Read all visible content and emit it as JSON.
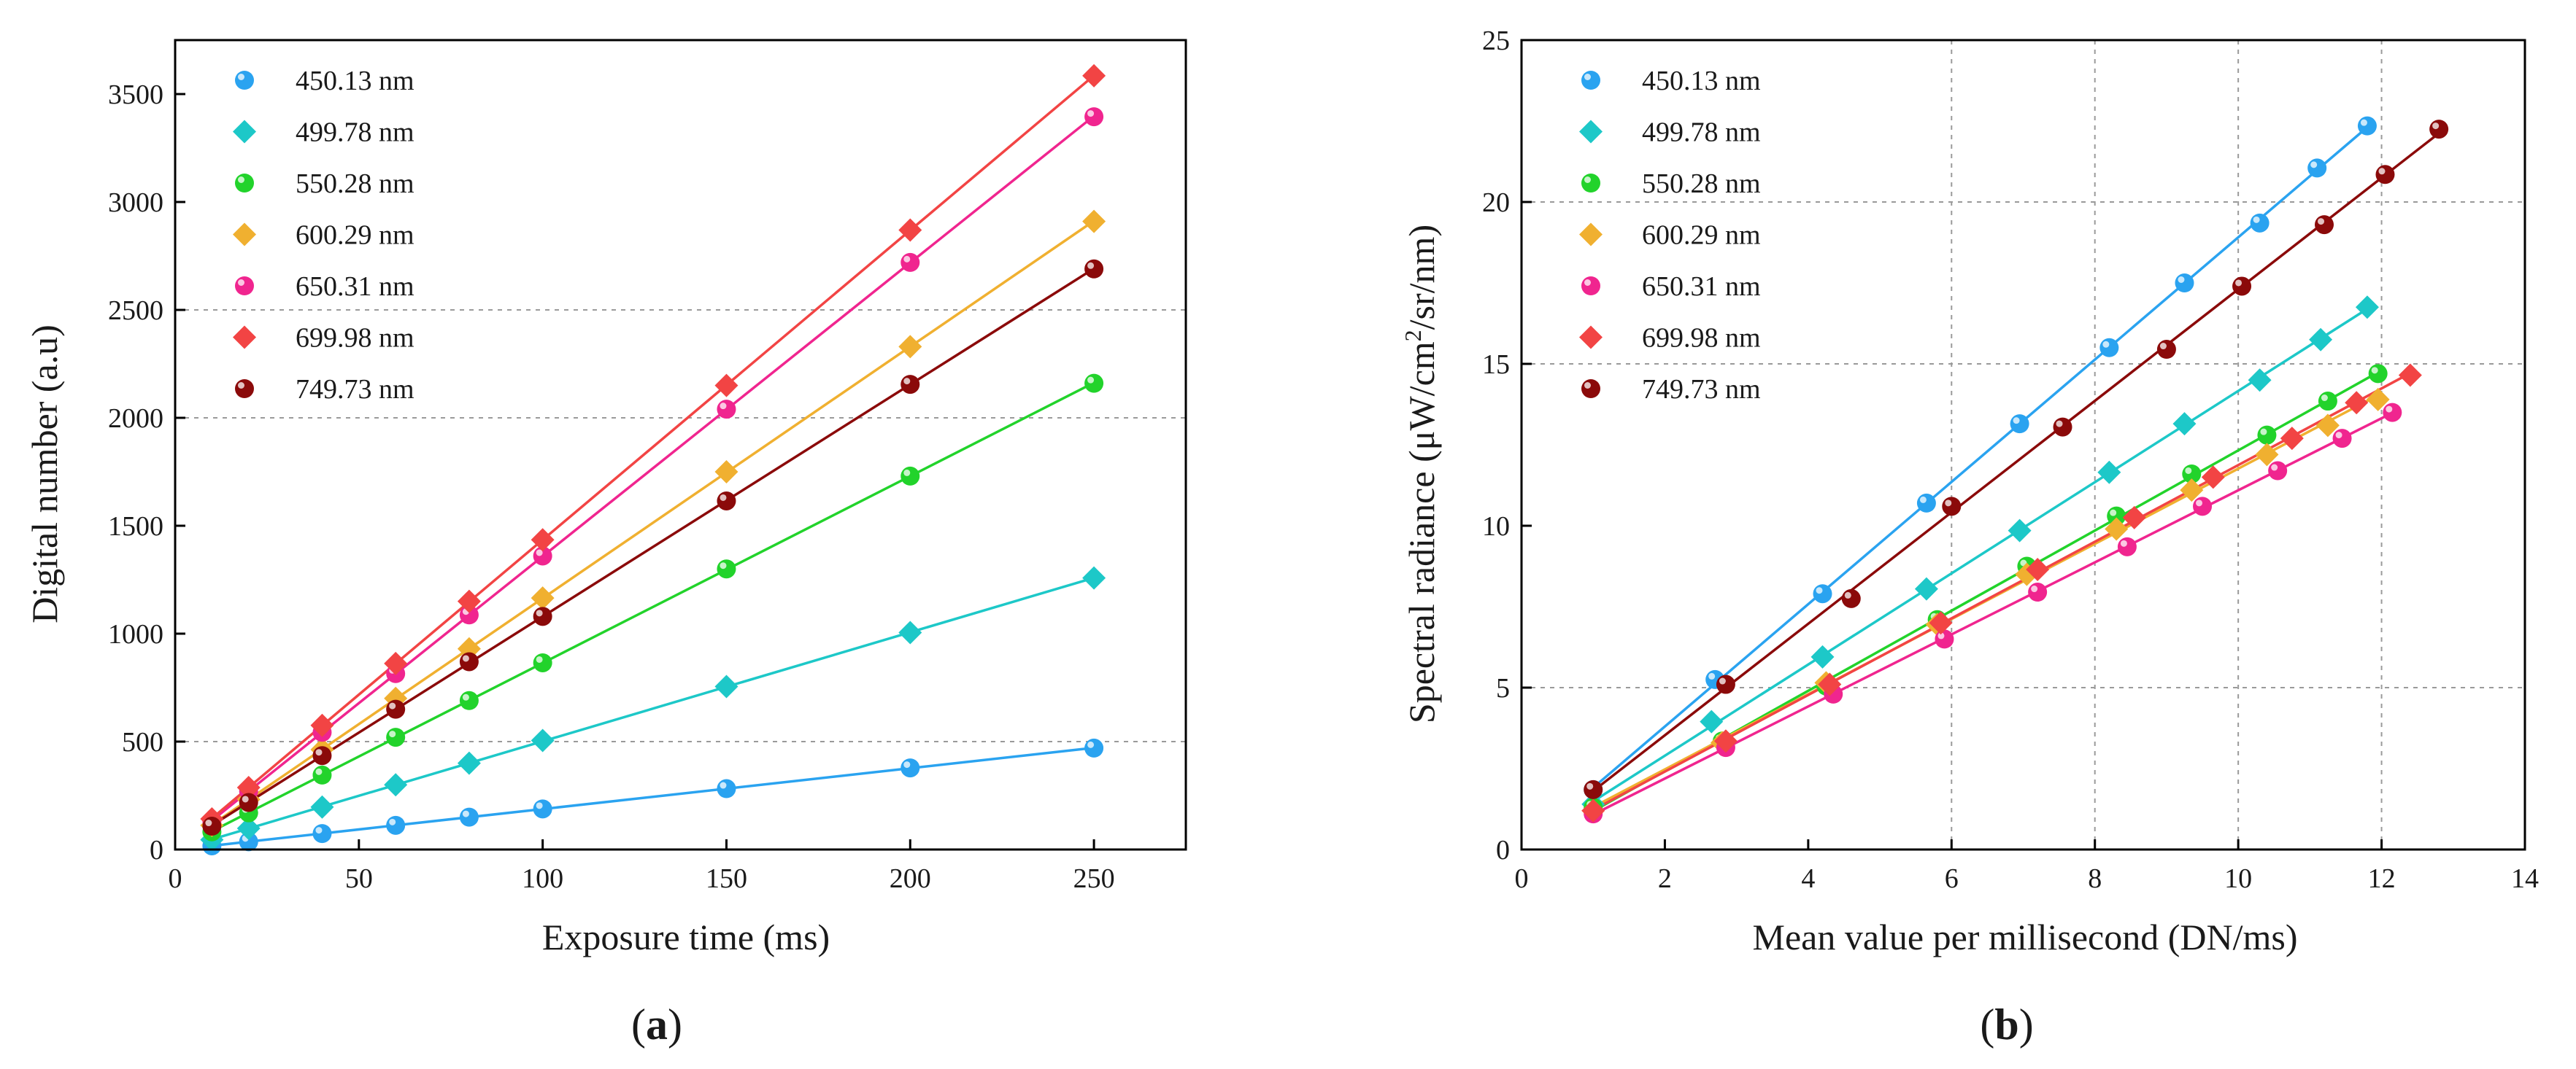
{
  "chart_data": [
    {
      "type": "scatter",
      "panel": "a",
      "caption": "a",
      "xlabel": "Exposure time (ms)",
      "ylabel": "Digital number (a.u)",
      "xlim": [
        0,
        275
      ],
      "ylim": [
        0,
        3750
      ],
      "xticks": [
        0,
        50,
        100,
        150,
        200,
        250
      ],
      "yticks": [
        0,
        500,
        1000,
        1500,
        2000,
        2500,
        3000,
        3500
      ],
      "grid_x": [],
      "grid_y": [
        500,
        2000,
        2500
      ],
      "legend_position": "top-left",
      "series": [
        {
          "name": "450.13 nm",
          "color": "#2aa3f0",
          "marker": "circle",
          "x": [
            10,
            20,
            40,
            60,
            80,
            100,
            150,
            200,
            250
          ],
          "y": [
            17,
            36,
            74,
            112,
            150,
            188,
            282,
            378,
            470
          ]
        },
        {
          "name": "499.78 nm",
          "color": "#1dc8c8",
          "marker": "diamond",
          "x": [
            10,
            20,
            40,
            60,
            80,
            100,
            150,
            200,
            250
          ],
          "y": [
            45,
            98,
            197,
            300,
            400,
            505,
            755,
            1005,
            1258
          ]
        },
        {
          "name": "550.28 nm",
          "color": "#22d32b",
          "marker": "circle",
          "x": [
            10,
            20,
            40,
            60,
            80,
            100,
            150,
            200,
            250
          ],
          "y": [
            82,
            170,
            345,
            520,
            690,
            865,
            1300,
            1730,
            2160
          ]
        },
        {
          "name": "600.29 nm",
          "color": "#f0b030",
          "marker": "diamond",
          "x": [
            10,
            20,
            40,
            60,
            80,
            100,
            150,
            200,
            250
          ],
          "y": [
            112,
            232,
            463,
            700,
            930,
            1165,
            1750,
            2330,
            2910
          ]
        },
        {
          "name": "650.31 nm",
          "color": "#f0258f",
          "marker": "circle",
          "x": [
            10,
            20,
            40,
            60,
            80,
            100,
            150,
            200,
            250
          ],
          "y": [
            130,
            270,
            543,
            815,
            1087,
            1360,
            2040,
            2720,
            3395
          ]
        },
        {
          "name": "699.98 nm",
          "color": "#f24444",
          "marker": "diamond",
          "x": [
            10,
            20,
            40,
            60,
            80,
            100,
            150,
            200,
            250
          ],
          "y": [
            142,
            287,
            575,
            862,
            1150,
            1435,
            2150,
            2870,
            3585
          ]
        },
        {
          "name": "749.73 nm",
          "color": "#8b0a0a",
          "marker": "circle",
          "x": [
            10,
            20,
            40,
            60,
            80,
            100,
            150,
            200,
            250
          ],
          "y": [
            108,
            218,
            435,
            650,
            870,
            1080,
            1615,
            2155,
            2690
          ]
        }
      ]
    },
    {
      "type": "scatter",
      "panel": "b",
      "caption": "b",
      "xlabel": "Mean value per millisecond (DN/ms)",
      "ylabel_prefix": "Spectral radiance (μW/cm",
      "ylabel_sup": "2",
      "ylabel_suffix": "/sr/nm)",
      "xlim": [
        0,
        14
      ],
      "ylim": [
        0,
        25
      ],
      "xticks": [
        0,
        2,
        4,
        6,
        8,
        10,
        12,
        14
      ],
      "yticks": [
        0,
        5,
        10,
        15,
        20,
        25
      ],
      "grid_x": [
        6,
        8,
        10,
        12
      ],
      "grid_y": [
        5,
        15,
        20
      ],
      "legend_position": "top-left",
      "series": [
        {
          "name": "450.13 nm",
          "color": "#2aa3f0",
          "marker": "circle",
          "x": [
            1.0,
            2.7,
            4.2,
            5.65,
            6.95,
            8.2,
            9.25,
            10.3,
            11.1,
            11.8
          ],
          "y": [
            1.85,
            5.25,
            7.9,
            10.7,
            13.15,
            15.5,
            17.5,
            19.35,
            21.05,
            22.35
          ]
        },
        {
          "name": "499.78 nm",
          "color": "#1dc8c8",
          "marker": "diamond",
          "x": [
            1.0,
            2.65,
            4.2,
            5.65,
            6.95,
            8.2,
            9.25,
            10.3,
            11.15,
            11.8
          ],
          "y": [
            1.4,
            3.95,
            5.95,
            8.05,
            9.85,
            11.65,
            13.15,
            14.5,
            15.75,
            16.75
          ]
        },
        {
          "name": "550.28 nm",
          "color": "#22d32b",
          "marker": "circle",
          "x": [
            1.0,
            2.8,
            4.25,
            5.8,
            7.05,
            8.3,
            9.35,
            10.4,
            11.25,
            11.95
          ],
          "y": [
            1.3,
            3.35,
            5.05,
            7.1,
            8.75,
            10.3,
            11.6,
            12.8,
            13.85,
            14.7
          ]
        },
        {
          "name": "600.29 nm",
          "color": "#f0b030",
          "marker": "diamond",
          "x": [
            1.0,
            2.8,
            4.25,
            5.8,
            7.05,
            8.3,
            9.35,
            10.4,
            11.25,
            11.95
          ],
          "y": [
            1.2,
            3.3,
            5.15,
            6.95,
            8.5,
            9.9,
            11.1,
            12.2,
            13.1,
            13.9
          ]
        },
        {
          "name": "650.31 nm",
          "color": "#f0258f",
          "marker": "circle",
          "x": [
            1.0,
            2.85,
            4.35,
            5.9,
            7.2,
            8.45,
            9.5,
            10.55,
            11.45,
            12.15
          ],
          "y": [
            1.1,
            3.15,
            4.8,
            6.5,
            7.95,
            9.35,
            10.6,
            11.7,
            12.7,
            13.5
          ]
        },
        {
          "name": "699.98 nm",
          "color": "#f24444",
          "marker": "diamond",
          "x": [
            1.0,
            2.85,
            4.3,
            5.85,
            7.2,
            8.55,
            9.65,
            10.75,
            11.65,
            12.4
          ],
          "y": [
            1.2,
            3.35,
            5.1,
            7.0,
            8.65,
            10.25,
            11.5,
            12.7,
            13.8,
            14.65
          ]
        },
        {
          "name": "749.73 nm",
          "color": "#8b0a0a",
          "marker": "circle",
          "x": [
            1.0,
            2.85,
            4.6,
            6.0,
            7.55,
            9.0,
            10.05,
            11.2,
            12.05,
            12.8
          ],
          "y": [
            1.85,
            5.1,
            7.75,
            10.6,
            13.05,
            15.45,
            17.4,
            19.3,
            20.85,
            22.25
          ]
        }
      ]
    }
  ]
}
